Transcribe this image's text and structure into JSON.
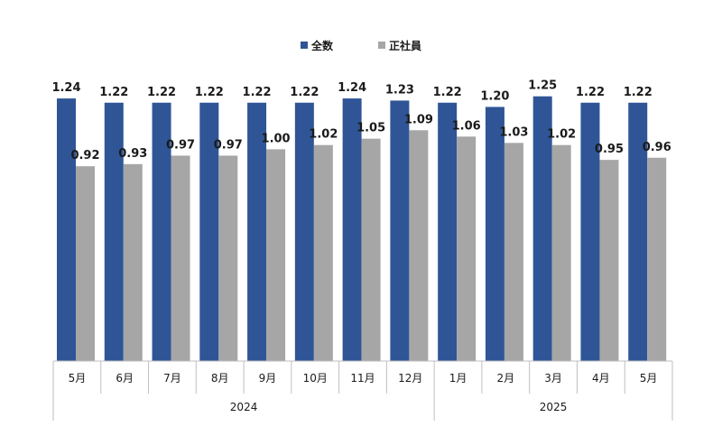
{
  "chart_data": {
    "type": "bar",
    "categories": [
      "5月",
      "6月",
      "7月",
      "8月",
      "9月",
      "10月",
      "11月",
      "12月",
      "1月",
      "2月",
      "3月",
      "4月",
      "5月"
    ],
    "groups": [
      {
        "label": "2024",
        "start": 0,
        "end": 7
      },
      {
        "label": "2025",
        "start": 8,
        "end": 12
      }
    ],
    "series": [
      {
        "name": "全数",
        "color": "#2f5597",
        "values": [
          1.24,
          1.22,
          1.22,
          1.22,
          1.22,
          1.22,
          1.24,
          1.23,
          1.22,
          1.2,
          1.25,
          1.22,
          1.22
        ]
      },
      {
        "name": "正社員",
        "color": "#a6a6a6",
        "values": [
          0.92,
          0.93,
          0.97,
          0.97,
          1.0,
          1.02,
          1.05,
          1.09,
          1.06,
          1.03,
          1.02,
          0.95,
          0.96
        ]
      }
    ],
    "value_labels": [
      [
        "1.24",
        "1.22",
        "1.22",
        "1.22",
        "1.22",
        "1.22",
        "1.24",
        "1.23",
        "1.22",
        "1.20",
        "1.25",
        "1.22",
        "1.22"
      ],
      [
        "0.92",
        "0.93",
        "0.97",
        "0.97",
        "1.00",
        "1.02",
        "1.05",
        "1.09",
        "1.06",
        "1.03",
        "1.02",
        "0.95",
        "0.96"
      ]
    ],
    "ylim": [
      0,
      1.3
    ],
    "legend_position": "top-center",
    "grid": false
  }
}
